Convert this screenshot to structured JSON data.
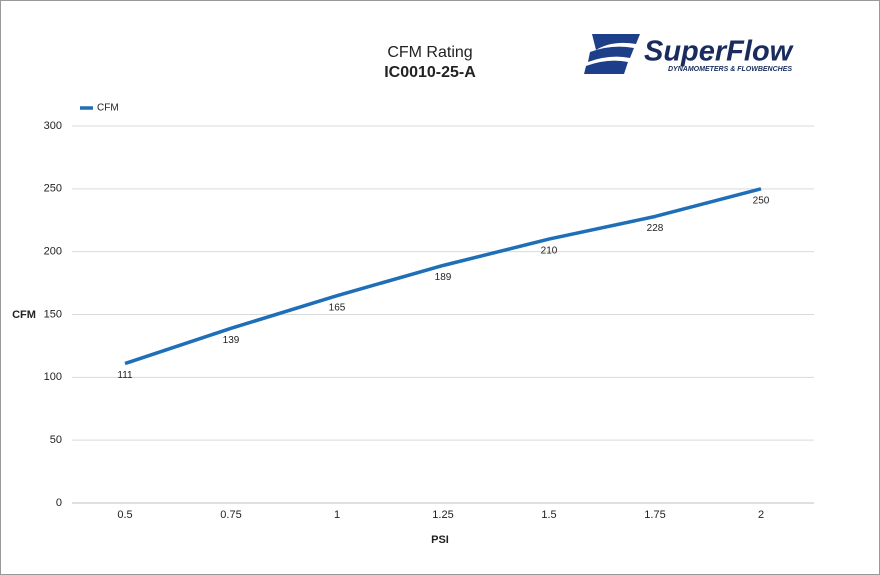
{
  "chart_data": {
    "type": "line",
    "title": "CFM Rating",
    "subtitle": "IC0010-25-A",
    "x_label": "PSI",
    "y_label": "CFM",
    "categories": [
      "0.5",
      "0.75",
      "1",
      "1.25",
      "1.5",
      "1.75",
      "2"
    ],
    "series": [
      {
        "name": "CFM",
        "color": "#1f6fb8",
        "values": [
          111,
          139,
          165,
          189,
          210,
          228,
          250
        ]
      }
    ],
    "ylim": [
      0,
      300
    ],
    "yticks": [
      0,
      50,
      100,
      150,
      200,
      250,
      300
    ],
    "grid": true,
    "legend": "top-left",
    "data_labels": true
  },
  "logo": {
    "name": "SuperFlow",
    "tagline": "DYNAMOMETERS & FLOWBENCHES"
  }
}
